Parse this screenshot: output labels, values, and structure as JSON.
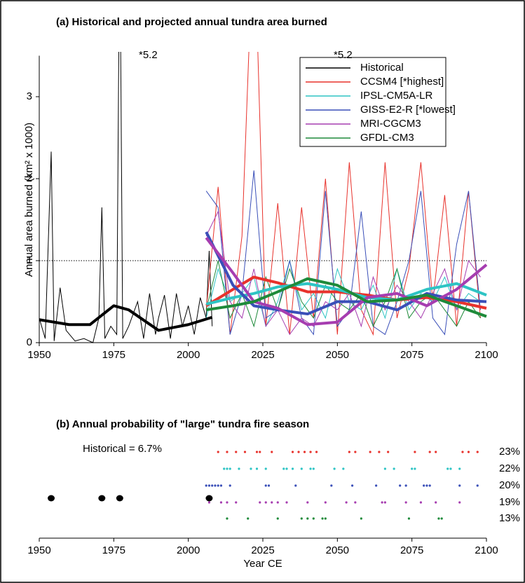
{
  "chart_data": [
    {
      "type": "line",
      "title": "(a) Historical and projected annual tundra area burned",
      "ylabel": "Annual area burned (km² x 1000)",
      "xlim": [
        1950,
        2100
      ],
      "xticks": [
        1950,
        1975,
        2000,
        2025,
        2050,
        2075,
        2100
      ],
      "ylim": [
        0,
        3.5
      ],
      "yticks": [
        0,
        1,
        2,
        3
      ],
      "threshold": 1,
      "annotations": [
        "*5.2",
        "*5.2"
      ],
      "x": [
        2006,
        2010,
        2014,
        2018,
        2022,
        2026,
        2030,
        2034,
        2038,
        2042,
        2046,
        2050,
        2054,
        2058,
        2062,
        2066,
        2070,
        2074,
        2078,
        2082,
        2086,
        2090,
        2094,
        2098
      ],
      "trend_x": [
        2006,
        2015,
        2022,
        2030,
        2040,
        2050,
        2060,
        2070,
        2080,
        2090,
        2100
      ],
      "series": [
        {
          "name": "Historical",
          "color": "#000000",
          "x": [
            1950,
            1952,
            1954,
            1955,
            1957,
            1959,
            1962,
            1965,
            1968,
            1970,
            1971,
            1972,
            1974,
            1976,
            1977,
            1978,
            1980,
            1983,
            1985,
            1987,
            1989,
            1990,
            1992,
            1994,
            1996,
            1998,
            2000,
            2002,
            2004,
            2006,
            2007,
            2008
          ],
          "values": [
            0.3,
            0.05,
            2.33,
            0.02,
            0.67,
            0.15,
            0.02,
            0.05,
            0.0,
            0.3,
            1.65,
            0.05,
            0.2,
            0.1,
            5.2,
            0.05,
            0.2,
            0.5,
            0.05,
            0.6,
            0.1,
            0.3,
            0.58,
            0.05,
            0.6,
            0.2,
            0.45,
            0.1,
            0.55,
            0.3,
            1.12,
            0.2
          ],
          "trend_x": [
            1950,
            1960,
            1967,
            1975,
            1980,
            1990,
            2000,
            2008
          ],
          "trend": [
            0.28,
            0.22,
            0.22,
            0.45,
            0.4,
            0.15,
            0.22,
            0.31
          ]
        },
        {
          "name": "CCSM4 [*highest]",
          "color": "#e8322c",
          "values": [
            0.4,
            1.9,
            0.1,
            1.3,
            5.2,
            0.2,
            1.7,
            0.1,
            1.65,
            0.3,
            2.0,
            0.1,
            2.2,
            0.4,
            0.1,
            2.2,
            0.3,
            0.9,
            2.2,
            0.5,
            1.8,
            0.2,
            1.85,
            0.3
          ],
          "trend": [
            0.45,
            0.65,
            0.8,
            0.73,
            0.62,
            0.62,
            0.58,
            0.52,
            0.55,
            0.5,
            0.42
          ]
        },
        {
          "name": "IPSL-CM5A-LR",
          "color": "#2ec4c4",
          "values": [
            0.3,
            0.9,
            0.5,
            0.6,
            0.8,
            0.2,
            0.5,
            1.0,
            0.4,
            0.6,
            0.3,
            0.9,
            0.5,
            0.4,
            0.7,
            0.3,
            0.9,
            0.4,
            0.6,
            0.5,
            0.8,
            0.4,
            0.6,
            0.5
          ],
          "trend": [
            0.47,
            0.55,
            0.6,
            0.68,
            0.72,
            0.65,
            0.55,
            0.52,
            0.65,
            0.72,
            0.58
          ]
        },
        {
          "name": "GISS-E2-R [*lowest]",
          "color": "#3a4fb8",
          "values": [
            1.85,
            1.65,
            0.1,
            0.6,
            2.1,
            0.3,
            0.4,
            1.0,
            0.3,
            0.1,
            1.85,
            0.2,
            0.4,
            1.6,
            0.2,
            0.1,
            0.5,
            1.0,
            1.85,
            0.3,
            0.1,
            1.2,
            1.85,
            0.4
          ],
          "trend": [
            1.35,
            0.7,
            0.45,
            0.4,
            0.35,
            0.5,
            0.5,
            0.4,
            0.6,
            0.52,
            0.5
          ]
        },
        {
          "name": "MRI-CGCM3",
          "color": "#a63db0",
          "values": [
            1.3,
            1.6,
            0.5,
            0.3,
            0.9,
            0.2,
            0.4,
            0.1,
            0.3,
            0.2,
            0.5,
            0.4,
            0.6,
            0.2,
            0.8,
            0.4,
            0.7,
            0.5,
            0.3,
            0.6,
            0.9,
            0.4,
            1.0,
            0.8
          ],
          "trend": [
            1.28,
            0.85,
            0.5,
            0.42,
            0.22,
            0.25,
            0.55,
            0.6,
            0.45,
            0.65,
            0.95
          ]
        },
        {
          "name": "GFDL-CM3",
          "color": "#1e8a3a",
          "values": [
            0.4,
            1.0,
            0.3,
            0.6,
            0.2,
            0.8,
            0.4,
            0.9,
            0.5,
            0.3,
            0.7,
            0.5,
            0.4,
            0.6,
            0.2,
            0.5,
            0.9,
            0.3,
            0.5,
            0.6,
            0.4,
            0.2,
            0.5,
            0.3
          ],
          "trend": [
            0.4,
            0.45,
            0.5,
            0.62,
            0.78,
            0.7,
            0.5,
            0.52,
            0.58,
            0.45,
            0.32
          ]
        }
      ]
    },
    {
      "type": "dots",
      "title": "(b) Annual probability of \"large\" tundra fire season",
      "xlabel": "Year CE",
      "xlim": [
        1950,
        2100
      ],
      "xticks": [
        1950,
        1975,
        2000,
        2025,
        2050,
        2075,
        2100
      ],
      "annotation": "Historical = 6.7%",
      "historical": {
        "color": "#000000",
        "years": [
          1954,
          1971,
          1977,
          2007
        ]
      },
      "values": [
        23,
        22,
        20,
        19,
        13
      ],
      "value_labels": [
        "23%",
        "22%",
        "20%",
        "19%",
        "13%"
      ],
      "rows": [
        {
          "color": "#e8322c",
          "years": [
            2010,
            2013,
            2016,
            2019,
            2023,
            2024,
            2028,
            2035,
            2037,
            2039,
            2041,
            2043,
            2054,
            2056,
            2061,
            2064,
            2067,
            2076,
            2081,
            2083,
            2092,
            2094,
            2097
          ]
        },
        {
          "color": "#2ec4c4",
          "years": [
            2012,
            2013,
            2014,
            2017,
            2021,
            2023,
            2026,
            2032,
            2033,
            2035,
            2038,
            2041,
            2042,
            2049,
            2052,
            2066,
            2069,
            2075,
            2076,
            2087,
            2088,
            2091
          ]
        },
        {
          "color": "#3a4fb8",
          "years": [
            2006,
            2007,
            2008,
            2009,
            2010,
            2011,
            2014,
            2026,
            2027,
            2036,
            2048,
            2055,
            2063,
            2071,
            2073,
            2079,
            2080,
            2081,
            2091,
            2097
          ]
        },
        {
          "color": "#a63db0",
          "years": [
            2007,
            2011,
            2013,
            2016,
            2024,
            2026,
            2028,
            2030,
            2033,
            2040,
            2046,
            2053,
            2056,
            2065,
            2066,
            2073,
            2078,
            2083,
            2091
          ]
        },
        {
          "color": "#1e8a3a",
          "years": [
            2013,
            2020,
            2030,
            2038,
            2040,
            2042,
            2045,
            2046,
            2058,
            2074,
            2084,
            2085
          ]
        }
      ]
    }
  ]
}
